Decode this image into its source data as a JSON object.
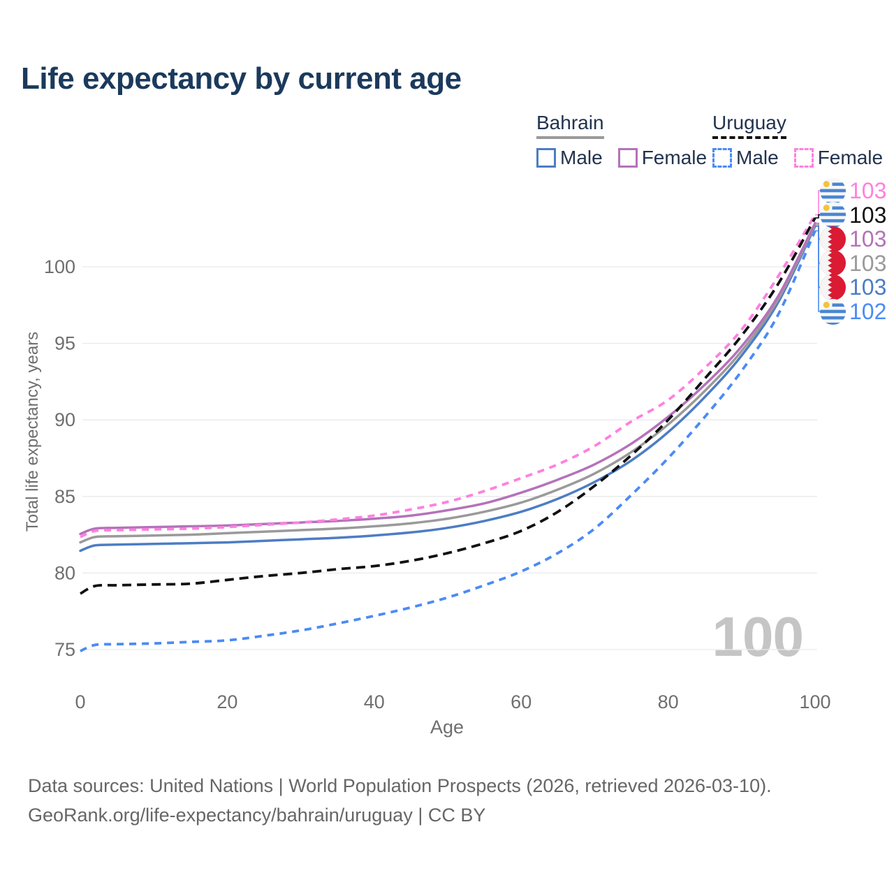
{
  "title": "Life expectancy by current age",
  "legend": {
    "groups": [
      {
        "name": "Bahrain",
        "line_style": "solid",
        "underline_color": "#9a9a9a",
        "items": [
          {
            "label": "Male",
            "color": "#4d7dc4",
            "dashed": false
          },
          {
            "label": "Female",
            "color": "#b472ba",
            "dashed": false
          }
        ]
      },
      {
        "name": "Uruguay",
        "line_style": "dashed",
        "underline_color": "#111111",
        "items": [
          {
            "label": "Male",
            "color": "#4b8bf5",
            "dashed": true
          },
          {
            "label": "Female",
            "color": "#ff80e0",
            "dashed": true
          }
        ]
      }
    ]
  },
  "chart_data": {
    "type": "line",
    "title": "Life expectancy by current age",
    "xlabel": "Age",
    "ylabel": "Total life expectancy, years",
    "x_ticks": [
      0,
      20,
      40,
      60,
      80,
      100
    ],
    "y_ticks": [
      75,
      80,
      85,
      90,
      95,
      100
    ],
    "xlim": [
      0,
      100
    ],
    "ylim": [
      74,
      104
    ],
    "grid": "horizontal-only",
    "legend_position": "top-right",
    "watermark": "100",
    "ages": [
      0,
      2,
      5,
      10,
      15,
      20,
      25,
      30,
      35,
      40,
      45,
      50,
      55,
      60,
      65,
      70,
      75,
      80,
      85,
      90,
      95,
      100
    ],
    "series": [
      {
        "name": "Bahrain Male",
        "country": "Bahrain",
        "sex": "Male",
        "color": "#4d7dc4",
        "dash": null,
        "values": [
          81.45,
          81.8,
          81.85,
          81.9,
          81.95,
          82.0,
          82.1,
          82.2,
          82.3,
          82.45,
          82.65,
          82.95,
          83.4,
          84.0,
          84.85,
          85.95,
          87.35,
          89.2,
          91.5,
          94.2,
          97.7,
          102.65
        ]
      },
      {
        "name": "Bahrain Total",
        "country": "Bahrain",
        "sex": "Total",
        "color": "#9a9a9a",
        "dash": null,
        "values": [
          82.0,
          82.35,
          82.4,
          82.45,
          82.5,
          82.6,
          82.7,
          82.8,
          82.9,
          83.05,
          83.25,
          83.55,
          84.0,
          84.6,
          85.45,
          86.5,
          87.9,
          89.7,
          91.9,
          94.5,
          97.9,
          102.75
        ]
      },
      {
        "name": "Bahrain Female",
        "country": "Bahrain",
        "sex": "Female",
        "color": "#b472ba",
        "dash": null,
        "values": [
          82.55,
          82.9,
          82.95,
          83.0,
          83.05,
          83.1,
          83.2,
          83.3,
          83.4,
          83.55,
          83.75,
          84.1,
          84.55,
          85.25,
          86.1,
          87.1,
          88.45,
          90.2,
          92.3,
          94.8,
          98.1,
          102.85
        ]
      },
      {
        "name": "Uruguay Female",
        "country": "Uruguay",
        "sex": "Female",
        "color": "#ff80e0",
        "dash": "10 8",
        "values": [
          82.35,
          82.75,
          82.8,
          82.85,
          82.9,
          83.0,
          83.15,
          83.3,
          83.5,
          83.75,
          84.15,
          84.65,
          85.35,
          86.2,
          87.1,
          88.3,
          89.9,
          91.3,
          93.4,
          95.9,
          99.4,
          103.4
        ]
      },
      {
        "name": "Uruguay Total",
        "country": "Uruguay",
        "sex": "Total",
        "color": "#111111",
        "dash": "13 8",
        "values": [
          78.65,
          79.15,
          79.2,
          79.25,
          79.3,
          79.55,
          79.8,
          80.0,
          80.25,
          80.45,
          80.8,
          81.3,
          81.95,
          82.75,
          84.0,
          85.7,
          87.7,
          90.0,
          92.7,
          95.5,
          98.9,
          103.2
        ]
      },
      {
        "name": "Uruguay Male",
        "country": "Uruguay",
        "sex": "Male",
        "color": "#4b8bf5",
        "dash": "10 8",
        "values": [
          74.9,
          75.3,
          75.35,
          75.4,
          75.5,
          75.6,
          75.9,
          76.25,
          76.7,
          77.2,
          77.75,
          78.4,
          79.2,
          80.1,
          81.3,
          82.9,
          85.1,
          87.5,
          90.2,
          93.2,
          96.9,
          102.35
        ]
      }
    ],
    "end_labels": [
      {
        "series": "Uruguay Female",
        "flag": "uruguay",
        "value": "103",
        "color": "#ff80e0"
      },
      {
        "series": "Uruguay Total",
        "flag": "uruguay",
        "value": "103",
        "color": "#111111"
      },
      {
        "series": "Bahrain Female",
        "flag": "bahrain",
        "value": "103",
        "color": "#b472ba"
      },
      {
        "series": "Bahrain Total",
        "flag": "bahrain",
        "value": "103",
        "color": "#9a9a9a"
      },
      {
        "series": "Bahrain Male",
        "flag": "bahrain",
        "value": "103",
        "color": "#4d7dc4"
      },
      {
        "series": "Uruguay Male",
        "flag": "uruguay",
        "value": "102",
        "color": "#4b8bf5"
      }
    ]
  },
  "footer": {
    "line1": "Data sources: United Nations | World Population Prospects (2026, retrieved 2026-03-10).",
    "line2": "GeoRank.org/life-expectancy/bahrain/uruguay | CC BY"
  }
}
